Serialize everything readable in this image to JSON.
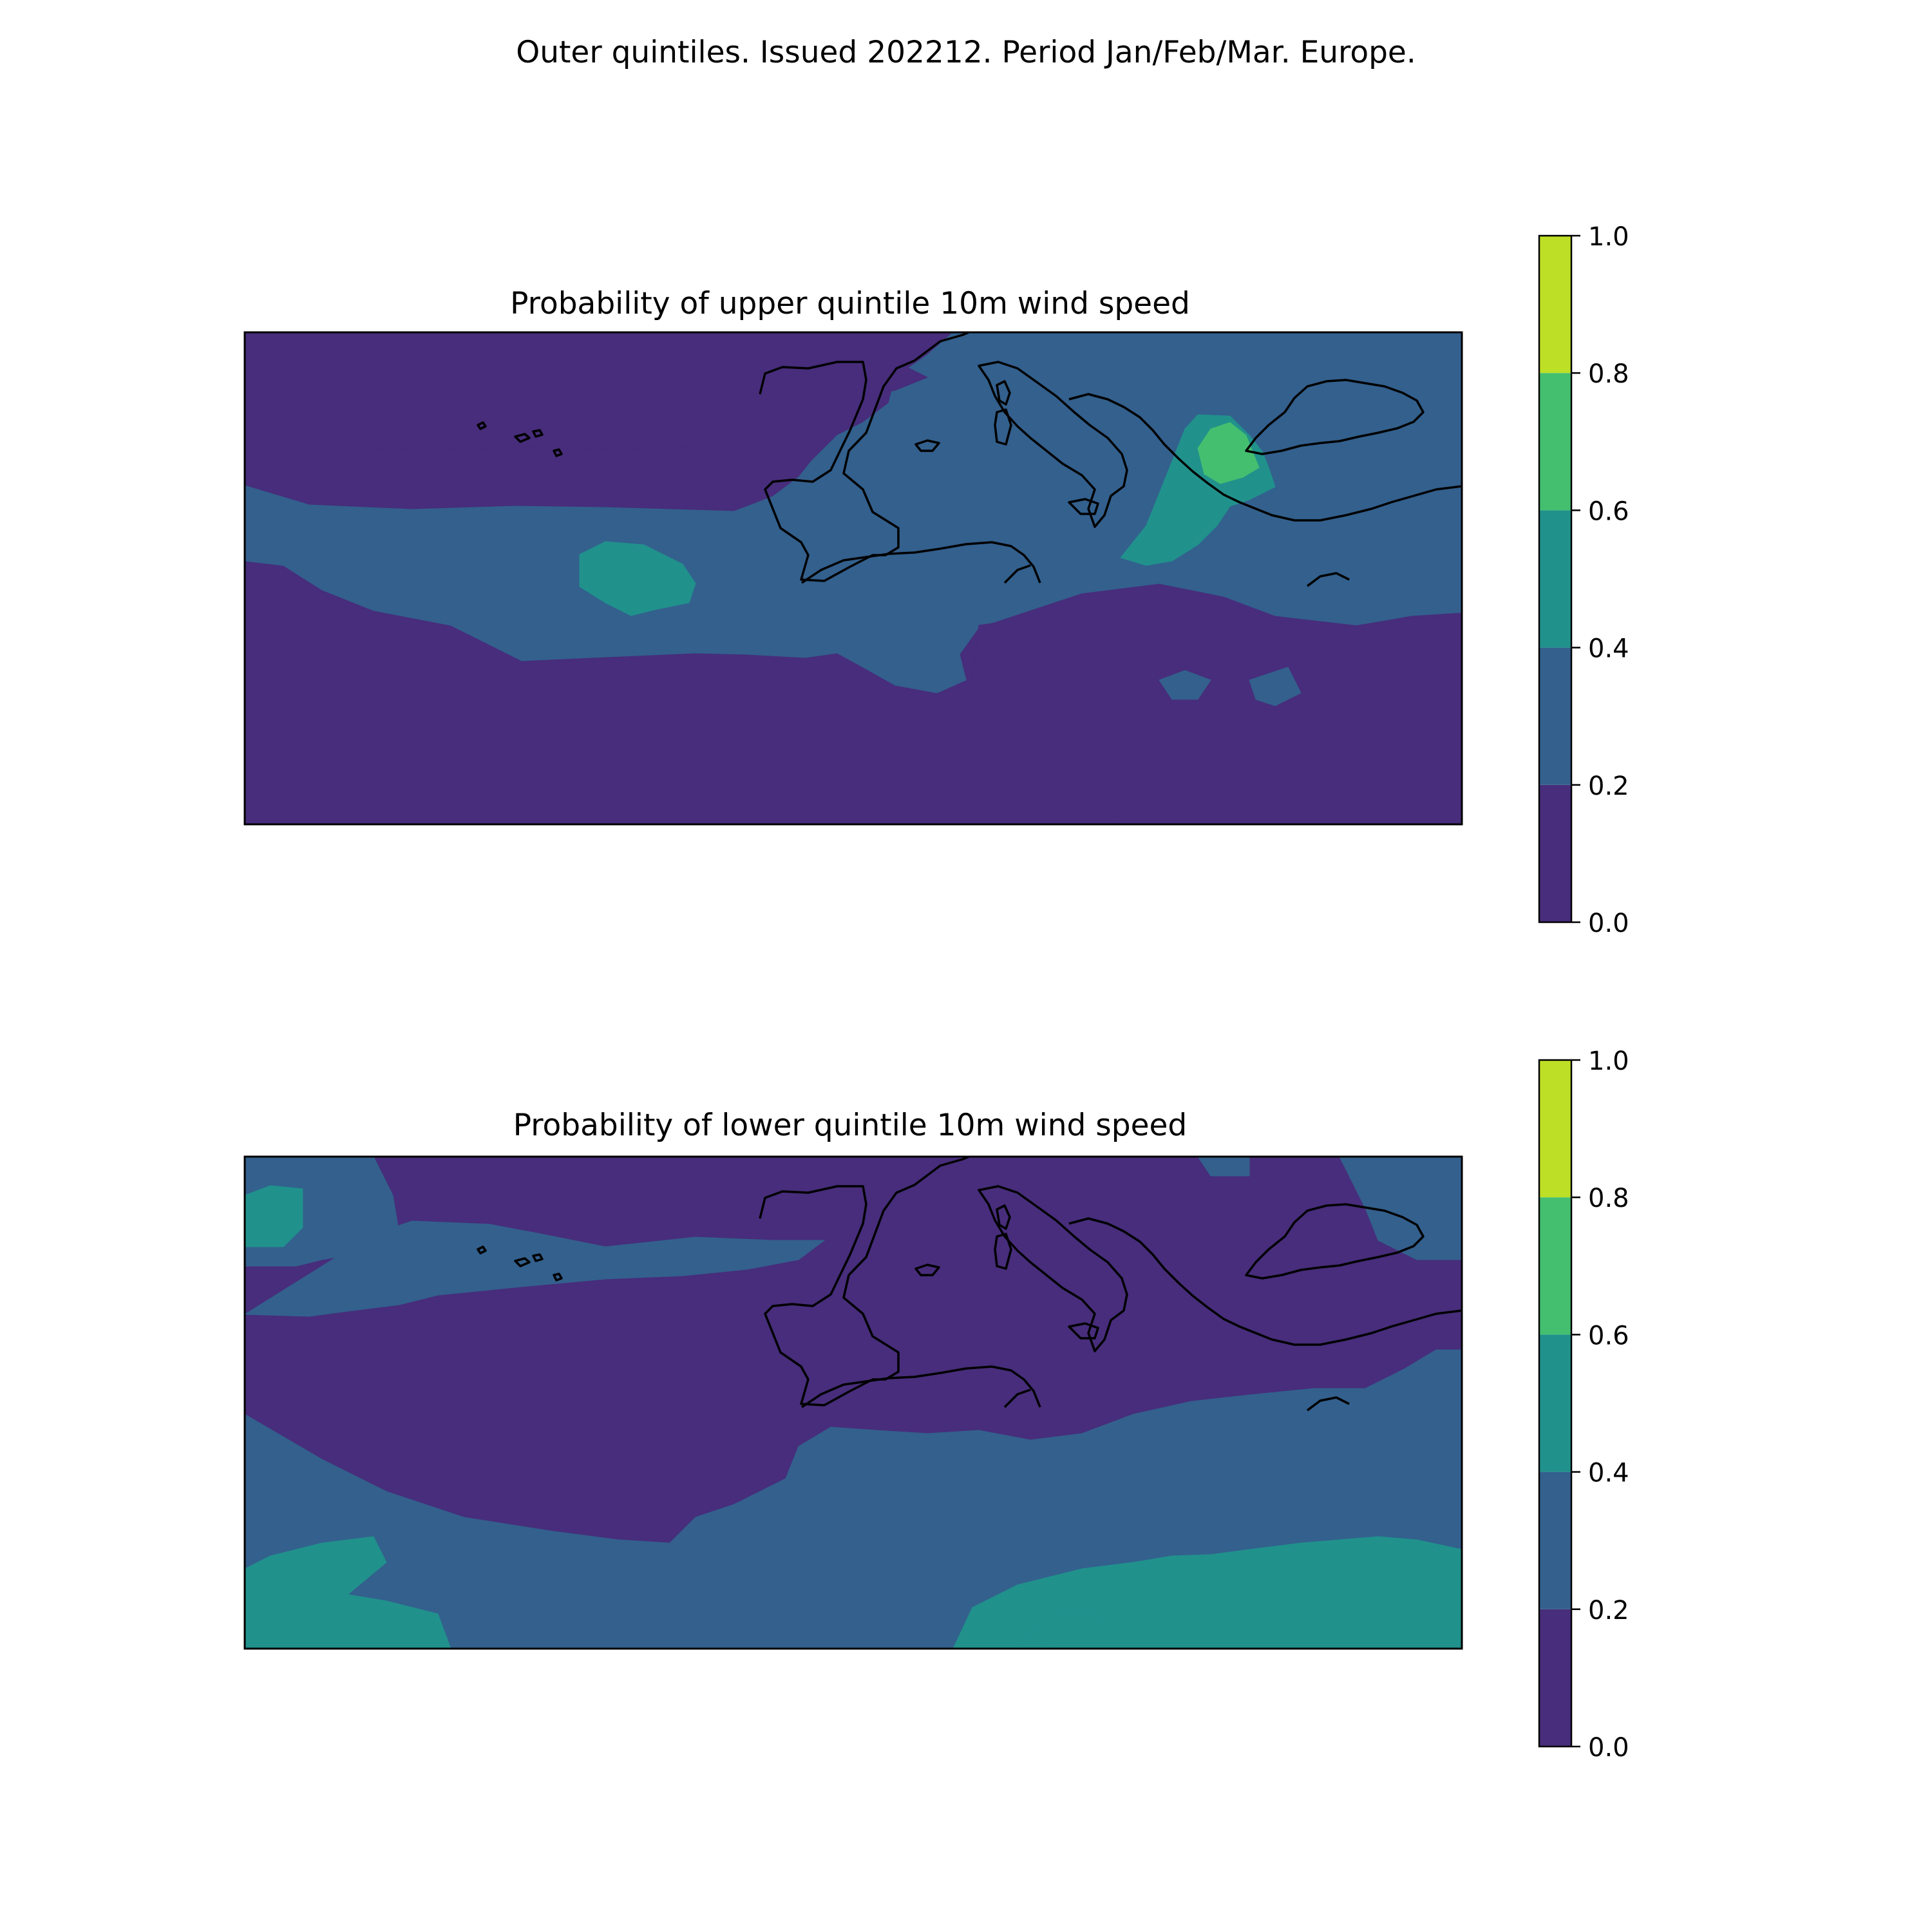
{
  "figure": {
    "title": "Outer quintiles. Issued 202212. Period Jan/Feb/Mar. Europe."
  },
  "colorbar": {
    "levels": [
      0.0,
      0.2,
      0.4,
      0.6,
      0.8,
      1.0
    ],
    "tick_labels": [
      "0.0",
      "0.2",
      "0.4",
      "0.6",
      "0.8",
      "1.0"
    ],
    "colors": [
      "#472d7b",
      "#33608d",
      "#21918c",
      "#44bf70",
      "#bddf26"
    ]
  },
  "panels": [
    {
      "id": "upper",
      "title": "Probability of upper quintile 10m wind speed"
    },
    {
      "id": "lower",
      "title": "Probability of lower quintile 10m wind speed"
    }
  ]
}
